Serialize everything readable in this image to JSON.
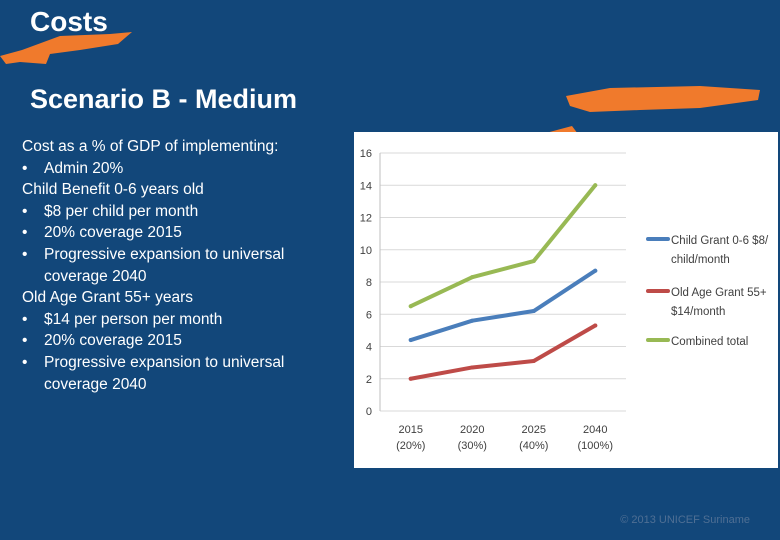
{
  "slide": {
    "title": "Costs",
    "subtitle": "Scenario B - Medium",
    "colors": {
      "background": "#12477a",
      "accent": "#f07a2c",
      "text": "#ffffff"
    }
  },
  "body": {
    "intro": "Cost as a % of GDP of implementing:",
    "admin": "Admin 20%",
    "child_heading": "Child Benefit 0-6 years old",
    "child_bullets": [
      "$8 per child per month",
      "20% coverage 2015"
    ],
    "child_expansion_1": "Progressive expansion to universal",
    "child_expansion_2": "coverage 2040",
    "old_heading": "Old Age Grant 55+ years",
    "old_bullets": [
      "$14 per person per month",
      "20% coverage 2015"
    ],
    "old_expansion_1": "Progressive expansion to universal",
    "old_expansion_2": "coverage 2040",
    "bullet_symbol": "•"
  },
  "footer": {
    "text": "© 2013 UNICEF Suriname"
  },
  "chart_data": {
    "type": "line",
    "categories": [
      "2015",
      "2020",
      "2025",
      "2040"
    ],
    "category_sublabels": [
      "(20%)",
      "(30%)",
      "(40%)",
      "(100%)"
    ],
    "ylim": [
      0,
      16
    ],
    "yticks": [
      0,
      2,
      4,
      6,
      8,
      10,
      12,
      14,
      16
    ],
    "grid": true,
    "legend_position": "right",
    "series": [
      {
        "name_lines": [
          "Child Grant 0-6 $8/",
          "child/month"
        ],
        "color": "#4a7ebb",
        "values": [
          4.4,
          5.6,
          6.2,
          8.7
        ]
      },
      {
        "name_lines": [
          "Old Age Grant 55+",
          "$14/month"
        ],
        "color": "#be4b48",
        "values": [
          2.0,
          2.7,
          3.1,
          5.3
        ]
      },
      {
        "name_lines": [
          "Combined total"
        ],
        "color": "#98b954",
        "values": [
          6.5,
          8.3,
          9.3,
          14.0
        ]
      }
    ]
  }
}
